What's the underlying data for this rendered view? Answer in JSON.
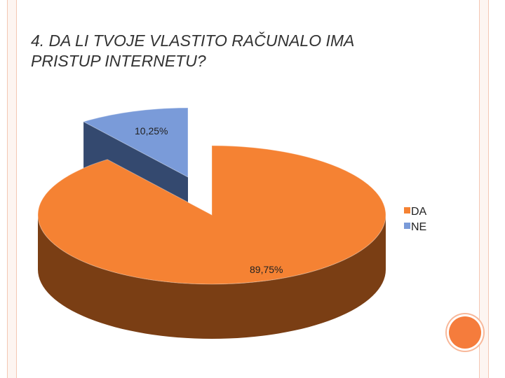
{
  "slide": {
    "title_line1": "4. DA LI TVOJE VLASTITO RAČUNALO IMA",
    "title_line2": "PRISTUP INTERNETU?"
  },
  "colors": {
    "accent": "#f57c3c",
    "frame": "#f4c7b3"
  },
  "chart_data": {
    "type": "pie",
    "title": "4. DA LI TVOJE VLASTITO RAČUNALO IMA PRISTUP INTERNETU?",
    "categories": [
      "DA",
      "NE"
    ],
    "values": [
      89.75,
      10.25
    ],
    "labels": [
      "89,75%",
      "10,25%"
    ],
    "colors": [
      "#f58233",
      "#7a9bd9"
    ],
    "side_colors": [
      "#7a3e14",
      "#34496f"
    ],
    "legend": {
      "placement": "right",
      "entries": [
        "DA",
        "NE"
      ]
    },
    "style": "3d-exploded"
  }
}
